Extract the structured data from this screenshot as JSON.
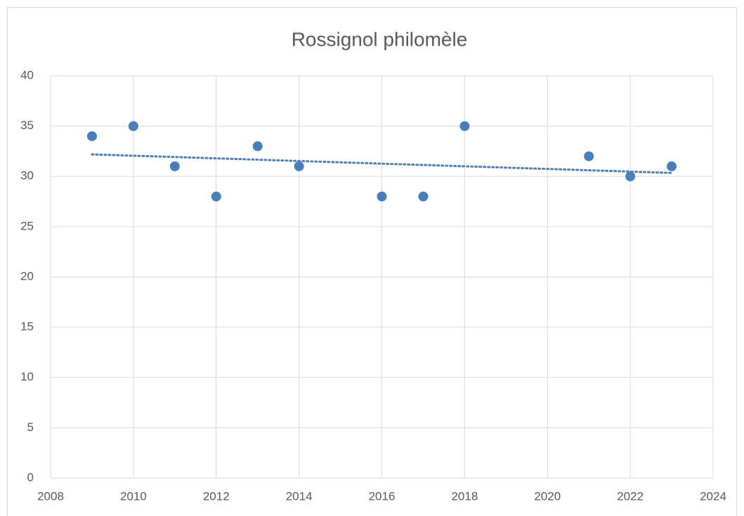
{
  "chart_data": {
    "type": "scatter",
    "title": "Rossignol philomèle",
    "x": [
      2009,
      2010,
      2011,
      2012,
      2013,
      2014,
      2016,
      2017,
      2018,
      2021,
      2022,
      2023
    ],
    "values": [
      34,
      35,
      31,
      28,
      33,
      31,
      28,
      28,
      35,
      32,
      30,
      31
    ],
    "color": "#4a7ebb",
    "trendline": "linear",
    "xlim": [
      2008,
      2024
    ],
    "xticks": [
      2008,
      2010,
      2012,
      2014,
      2016,
      2018,
      2020,
      2022,
      2024
    ],
    "ylim": [
      0,
      40
    ],
    "yticks": [
      0,
      5,
      10,
      15,
      20,
      25,
      30,
      35,
      40
    ],
    "grid": true
  }
}
